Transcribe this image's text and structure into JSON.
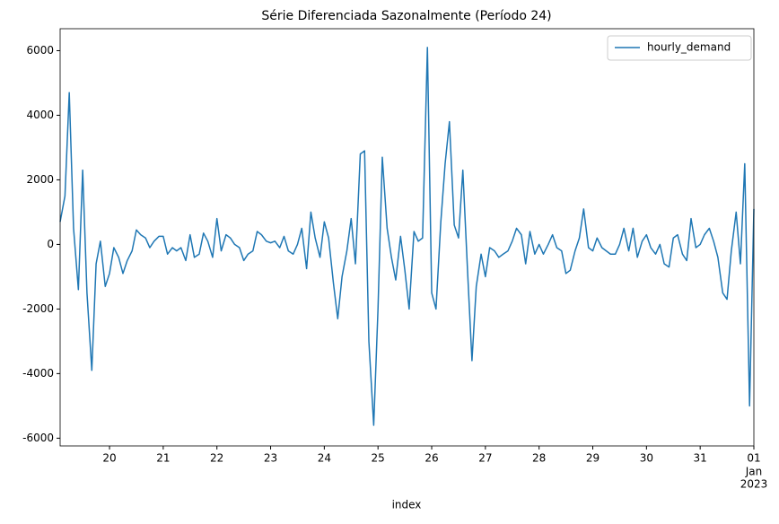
{
  "chart_data": {
    "type": "line",
    "title": "Série Diferenciada Sazonalmente (Período 24)",
    "x_label": "index",
    "xlim": [
      19.08,
      32
    ],
    "ylim": [
      -6240,
      6680
    ],
    "xticks": [
      20,
      21,
      22,
      23,
      24,
      25,
      26,
      27,
      28,
      29,
      30,
      31,
      {
        "value": 32,
        "label": "01"
      }
    ],
    "x_tick_sublabels": [
      "Jan",
      "2023"
    ],
    "yticks": [
      -6000,
      -4000,
      -2000,
      0,
      2000,
      4000,
      6000
    ],
    "legend": "upper right",
    "x": [
      19.08,
      19.17,
      19.25,
      19.33,
      19.42,
      19.5,
      19.58,
      19.67,
      19.75,
      19.83,
      19.92,
      20,
      20.08,
      20.17,
      20.25,
      20.33,
      20.42,
      20.5,
      20.58,
      20.67,
      20.75,
      20.83,
      20.92,
      21,
      21.08,
      21.17,
      21.25,
      21.33,
      21.42,
      21.5,
      21.58,
      21.67,
      21.75,
      21.83,
      21.92,
      22,
      22.08,
      22.17,
      22.25,
      22.33,
      22.42,
      22.5,
      22.58,
      22.67,
      22.75,
      22.83,
      22.92,
      23,
      23.08,
      23.17,
      23.25,
      23.33,
      23.42,
      23.5,
      23.58,
      23.67,
      23.75,
      23.83,
      23.92,
      24,
      24.08,
      24.17,
      24.25,
      24.33,
      24.42,
      24.5,
      24.58,
      24.67,
      24.75,
      24.83,
      24.92,
      25,
      25.08,
      25.17,
      25.25,
      25.33,
      25.42,
      25.5,
      25.58,
      25.67,
      25.75,
      25.83,
      25.92,
      26,
      26.08,
      26.17,
      26.25,
      26.33,
      26.42,
      26.5,
      26.58,
      26.67,
      26.75,
      26.83,
      26.92,
      27,
      27.08,
      27.17,
      27.25,
      27.33,
      27.42,
      27.5,
      27.58,
      27.67,
      27.75,
      27.83,
      27.92,
      28,
      28.08,
      28.17,
      28.25,
      28.33,
      28.42,
      28.5,
      28.58,
      28.67,
      28.75,
      28.83,
      28.92,
      29,
      29.08,
      29.17,
      29.25,
      29.33,
      29.42,
      29.5,
      29.58,
      29.67,
      29.75,
      29.83,
      29.92,
      30,
      30.08,
      30.17,
      30.25,
      30.33,
      30.42,
      30.5,
      30.58,
      30.67,
      30.75,
      30.83,
      30.92,
      31,
      31.08,
      31.17,
      31.25,
      31.33,
      31.42,
      31.5,
      31.58,
      31.67,
      31.75,
      31.83,
      31.92,
      32
    ],
    "series": [
      {
        "name": "hourly_demand",
        "color": "#1f77b4",
        "values": [
          700,
          1500,
          4700,
          500,
          -1400,
          2300,
          -1500,
          -3900,
          -600,
          100,
          -1300,
          -900,
          -100,
          -400,
          -900,
          -500,
          -200,
          450,
          300,
          200,
          -100,
          100,
          250,
          250,
          -300,
          -100,
          -200,
          -100,
          -500,
          300,
          -400,
          -300,
          350,
          100,
          -400,
          800,
          -200,
          300,
          200,
          0,
          -100,
          -500,
          -300,
          -200,
          400,
          300,
          100,
          50,
          100,
          -100,
          250,
          -200,
          -300,
          0,
          500,
          -750,
          1000,
          200,
          -400,
          700,
          200,
          -1200,
          -2300,
          -1000,
          -200,
          800,
          -600,
          2800,
          2900,
          -3000,
          -5600,
          -2000,
          2700,
          500,
          -400,
          -1100,
          250,
          -800,
          -2000,
          400,
          100,
          200,
          6100,
          -1500,
          -2000,
          700,
          2500,
          3800,
          600,
          200,
          2300,
          -900,
          -3600,
          -1300,
          -300,
          -1000,
          -100,
          -200,
          -400,
          -300,
          -200,
          100,
          500,
          300,
          -600,
          400,
          -300,
          0,
          -300,
          0,
          300,
          -100,
          -200,
          -900,
          -800,
          -200,
          200,
          1100,
          -100,
          -200,
          200,
          -100,
          -200,
          -300,
          -300,
          0,
          500,
          -200,
          500,
          -400,
          100,
          300,
          -100,
          -300,
          0,
          -600,
          -700,
          200,
          300,
          -300,
          -500,
          800,
          -100,
          0,
          300,
          500,
          100,
          -400,
          -1500,
          -1700,
          -200,
          1000,
          -600,
          2500,
          -5000,
          1100
        ]
      }
    ]
  }
}
